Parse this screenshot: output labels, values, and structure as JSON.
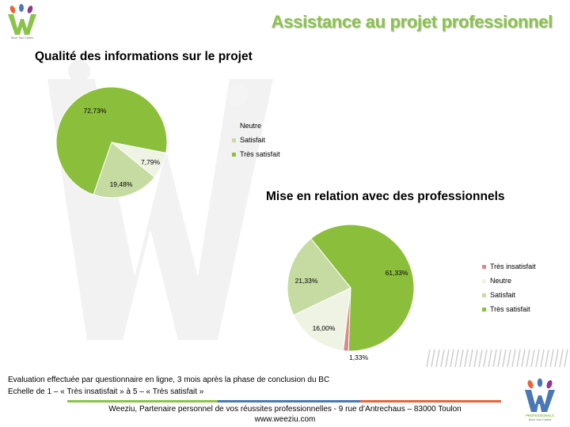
{
  "title": "Assistance au projet professionnel",
  "colors": {
    "tres_satisfait": "#8bbf3b",
    "satisfait": "#c6dba2",
    "neutre": "#eef3e3",
    "tres_insatisfait": "#d88a8c",
    "title_green": "#8bc34a"
  },
  "chart_data": [
    {
      "type": "pie",
      "title": "Qualité des informations sur le projet",
      "slices": [
        {
          "label": "Neutre",
          "value": 7.79,
          "display": "7,79%",
          "color": "#eef3e3"
        },
        {
          "label": "Satisfait",
          "value": 19.48,
          "display": "19,48%",
          "color": "#c6dba2"
        },
        {
          "label": "Très satisfait",
          "value": 72.73,
          "display": "72,73%",
          "color": "#8bbf3b"
        }
      ],
      "legend": [
        "Neutre",
        "Satisfait",
        "Très satisfait"
      ],
      "legend_position": "right"
    },
    {
      "type": "pie",
      "title": "Mise en relation avec des professionnels",
      "slices": [
        {
          "label": "Très insatisfait",
          "value": 1.33,
          "display": "1,33%",
          "color": "#d88a8c"
        },
        {
          "label": "Neutre",
          "value": 16.0,
          "display": "16,00%",
          "color": "#eef3e3"
        },
        {
          "label": "Satisfait",
          "value": 21.33,
          "display": "21,33%",
          "color": "#c6dba2"
        },
        {
          "label": "Très satisfait",
          "value": 61.33,
          "display": "61,33%",
          "color": "#8bbf3b"
        }
      ],
      "legend": [
        "Très insatisfait",
        "Neutre",
        "Satisfait",
        "Très satisfait"
      ],
      "legend_position": "right"
    }
  ],
  "notes": {
    "line1": "Evaluation effectuée par questionnaire en ligne, 3 mois après la phase de conclusion du BC",
    "line2": "Echelle de 1 – « Très insatisfait » à 5 – « Très satisfait »"
  },
  "footer": {
    "line1": "Weeziu, Partenaire personnel de vos réussites professionnelles - 9 rue d’Antrechaus – 83000 Toulon",
    "line2": "www.weeziu.com",
    "bar_colors": [
      "#8bc34a",
      "#4a78b5",
      "#e8643c"
    ]
  },
  "logo": {
    "tagline": "Drive Your Career",
    "badge": "PROFESSIONALS"
  }
}
